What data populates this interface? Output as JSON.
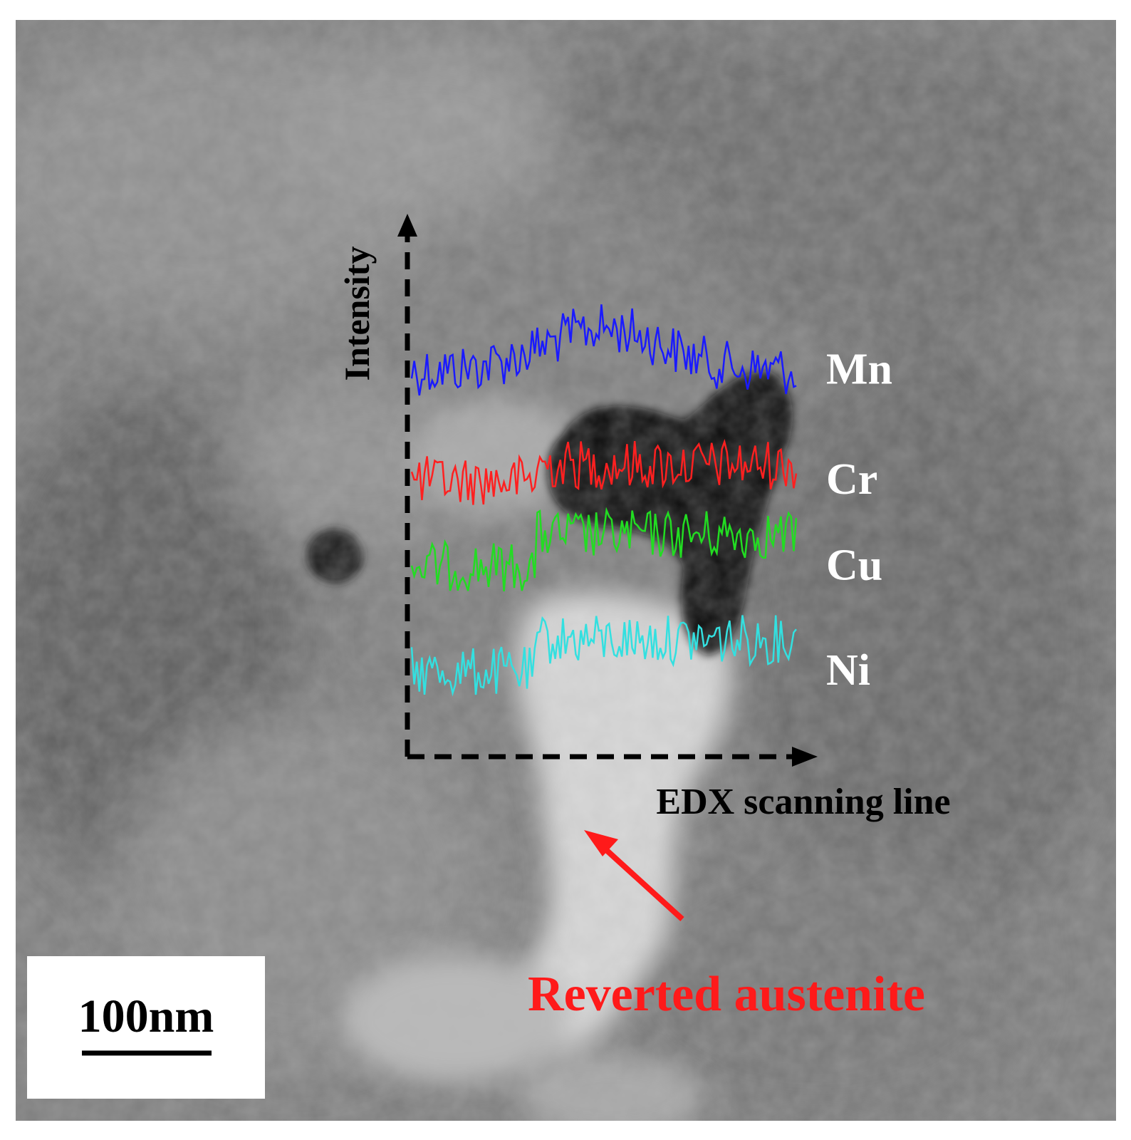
{
  "micrograph": {
    "axes": {
      "y_label": "Intensity",
      "x_label": "EDX scanning line"
    },
    "profiles": [
      {
        "element": "Mn",
        "color": "#1a1aff",
        "level": 0.79
      },
      {
        "element": "Cr",
        "color": "#ff2020",
        "level": 0.56
      },
      {
        "element": "Cu",
        "color": "#22dd22",
        "level": 0.38
      },
      {
        "element": "Ni",
        "color": "#33e0e0",
        "level": 0.16
      }
    ],
    "annotation": {
      "text": "Reverted austenite",
      "color": "#ff1a1a"
    },
    "scale_bar": {
      "label": "100nm"
    }
  }
}
